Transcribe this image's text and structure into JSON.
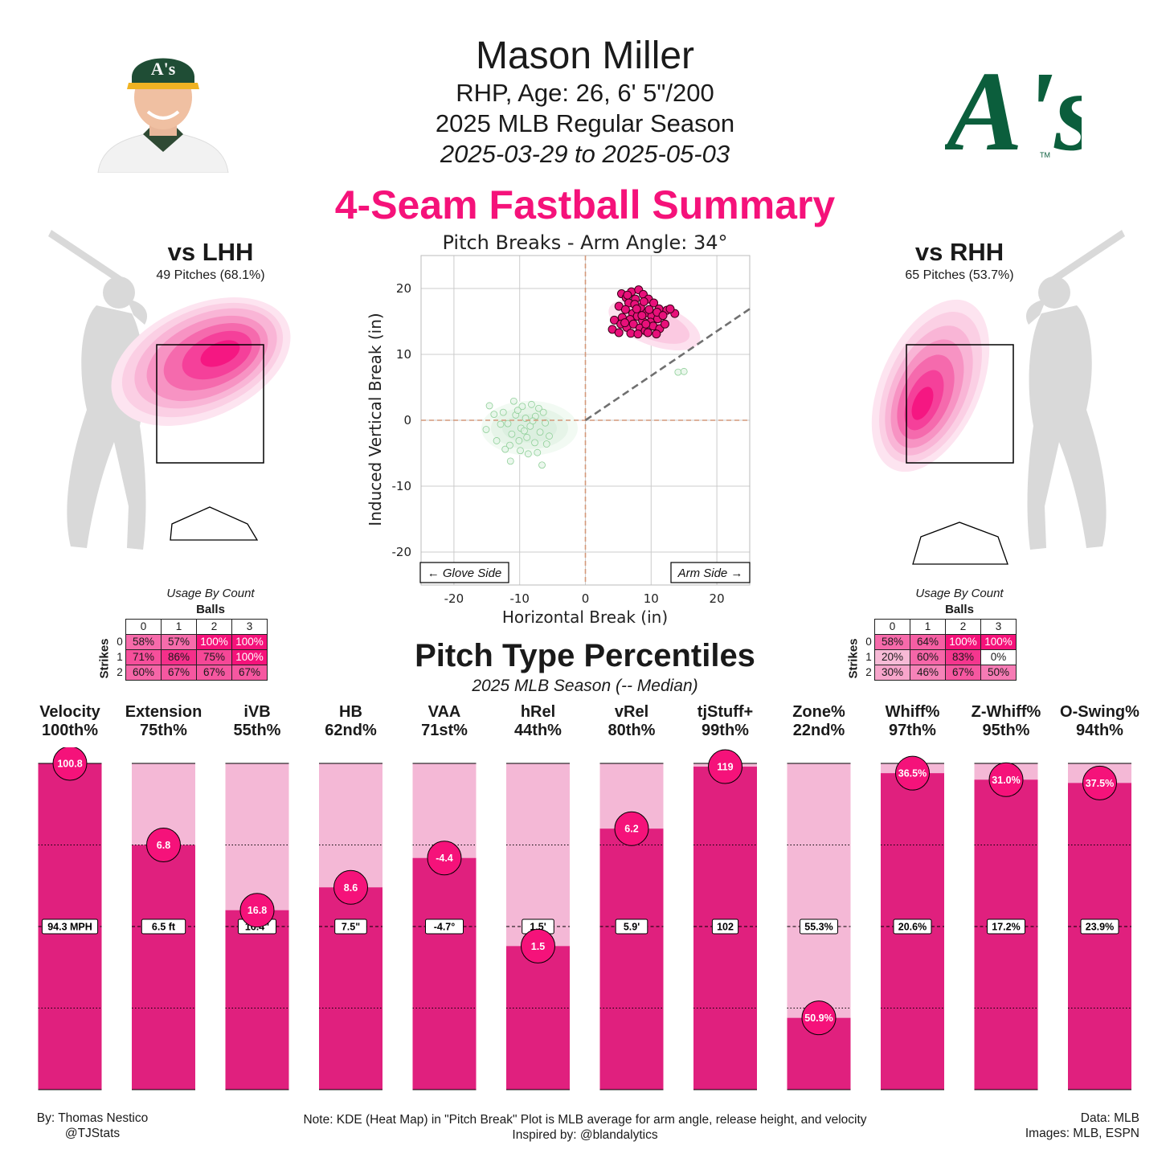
{
  "header": {
    "name": "Mason Miller",
    "info": "RHP, Age: 26, 6' 5\"/200",
    "season": "2025 MLB Regular Season",
    "dates": "2025-03-29 to 2025-05-03",
    "pitch_title": "4-Seam Fastball Summary"
  },
  "logo": {
    "text": "A's",
    "tm": "TM",
    "color": "#0b5e3c"
  },
  "lhh": {
    "title": "vs LHH",
    "sub": "49 Pitches (68.1%)",
    "usage_caption": "Usage By Count",
    "balls_label": "Balls",
    "strikes_label": "Strikes",
    "cols": [
      "0",
      "1",
      "2",
      "3"
    ],
    "rows": [
      {
        "strikes": "0",
        "cells": [
          "58%",
          "57%",
          "100%",
          "100%"
        ],
        "levels": [
          0.58,
          0.57,
          1.0,
          1.0
        ]
      },
      {
        "strikes": "1",
        "cells": [
          "71%",
          "86%",
          "75%",
          "100%"
        ],
        "levels": [
          0.71,
          0.86,
          0.75,
          1.0
        ]
      },
      {
        "strikes": "2",
        "cells": [
          "60%",
          "67%",
          "67%",
          "67%"
        ],
        "levels": [
          0.6,
          0.67,
          0.67,
          0.67
        ]
      }
    ]
  },
  "rhh": {
    "title": "vs RHH",
    "sub": "65 Pitches (53.7%)",
    "usage_caption": "Usage By Count",
    "balls_label": "Balls",
    "strikes_label": "Strikes",
    "cols": [
      "0",
      "1",
      "2",
      "3"
    ],
    "rows": [
      {
        "strikes": "0",
        "cells": [
          "58%",
          "64%",
          "100%",
          "100%"
        ],
        "levels": [
          0.58,
          0.64,
          1.0,
          1.0
        ]
      },
      {
        "strikes": "1",
        "cells": [
          "20%",
          "60%",
          "83%",
          "0%"
        ],
        "levels": [
          0.2,
          0.6,
          0.83,
          0.0
        ]
      },
      {
        "strikes": "2",
        "cells": [
          "30%",
          "46%",
          "67%",
          "50%"
        ],
        "levels": [
          0.3,
          0.46,
          0.67,
          0.5
        ]
      }
    ]
  },
  "colors": {
    "accent": "#f5127a",
    "bar_fill": "#e0207e",
    "bar_bg": "#f4b8d6",
    "kde": "#f7aed2",
    "dot": "#e8107a",
    "cmp": "#8fcf98"
  },
  "chart_data": [
    {
      "type": "scatter",
      "title": "Pitch Breaks - Arm Angle: 34°",
      "xlabel": "Horizontal Break (in)",
      "ylabel": "Induced Vertical Break (in)",
      "xlim": [
        -25,
        25
      ],
      "ylim": [
        -25,
        25
      ],
      "xticks": [
        -20,
        -10,
        0,
        10,
        20
      ],
      "yticks": [
        -20,
        -10,
        0,
        10,
        20
      ],
      "grid": true,
      "annotations": [
        "← Glove Side",
        "Arm Side →"
      ],
      "arm_angle_line": {
        "from": [
          0,
          0
        ],
        "to": [
          25,
          16.9
        ]
      },
      "series": [
        {
          "name": "4-Seam Fastball",
          "points": [
            [
              5.5,
              19.2
            ],
            [
              6.2,
              18.6
            ],
            [
              7.0,
              19.5
            ],
            [
              8.1,
              19.8
            ],
            [
              8.8,
              19.1
            ],
            [
              7.6,
              18.4
            ],
            [
              6.6,
              17.8
            ],
            [
              5.1,
              17.3
            ],
            [
              9.6,
              18.4
            ],
            [
              10.4,
              17.8
            ],
            [
              11.2,
              16.9
            ],
            [
              6.1,
              16.8
            ],
            [
              7.2,
              16.2
            ],
            [
              8.4,
              17.1
            ],
            [
              9.3,
              16.3
            ],
            [
              10.1,
              15.8
            ],
            [
              5.6,
              15.6
            ],
            [
              6.8,
              15.3
            ],
            [
              7.9,
              15.8
            ],
            [
              8.7,
              15.1
            ],
            [
              9.9,
              14.9
            ],
            [
              11.0,
              15.4
            ],
            [
              12.4,
              16.7
            ],
            [
              13.6,
              16.2
            ],
            [
              4.4,
              15.2
            ],
            [
              5.4,
              14.6
            ],
            [
              6.3,
              14.1
            ],
            [
              7.3,
              14.6
            ],
            [
              8.3,
              14.0
            ],
            [
              9.1,
              13.6
            ],
            [
              10.3,
              14.3
            ],
            [
              11.3,
              13.9
            ],
            [
              4.1,
              13.8
            ],
            [
              5.1,
              13.3
            ],
            [
              6.9,
              13.2
            ],
            [
              8.0,
              13.1
            ],
            [
              9.5,
              13.3
            ],
            [
              10.8,
              13.1
            ],
            [
              12.1,
              14.6
            ],
            [
              7.5,
              17.6
            ],
            [
              8.9,
              18.0
            ],
            [
              6.4,
              19.0
            ],
            [
              9.7,
              16.8
            ],
            [
              10.9,
              16.4
            ],
            [
              7.8,
              16.9
            ],
            [
              6.0,
              14.8
            ],
            [
              8.6,
              15.9
            ],
            [
              9.2,
              14.6
            ],
            [
              11.8,
              15.9
            ],
            [
              12.9,
              16.9
            ]
          ]
        },
        {
          "name": "League average",
          "points": [
            [
              -12.5,
              1.2
            ],
            [
              -11.8,
              -0.5
            ],
            [
              -10.6,
              0.8
            ],
            [
              -9.8,
              -1.2
            ],
            [
              -9.1,
              0.3
            ],
            [
              -8.4,
              -0.9
            ],
            [
              -7.6,
              0.6
            ],
            [
              -6.9,
              -1.8
            ],
            [
              -6.1,
              -0.4
            ],
            [
              -5.5,
              -2.4
            ],
            [
              -11.2,
              -2.1
            ],
            [
              -10.1,
              -3.1
            ],
            [
              -8.9,
              -2.6
            ],
            [
              -7.7,
              -3.4
            ],
            [
              -12.9,
              -0.6
            ],
            [
              -13.9,
              0.9
            ],
            [
              -9.6,
              2.1
            ],
            [
              -8.2,
              2.4
            ],
            [
              -10.9,
              2.9
            ],
            [
              -7.1,
              1.8
            ],
            [
              -12.2,
              -4.4
            ],
            [
              -11.4,
              -6.2
            ],
            [
              -6.6,
              -6.8
            ],
            [
              -13.5,
              -3.1
            ],
            [
              -15.1,
              -1.4
            ],
            [
              -5.9,
              -3.6
            ],
            [
              -8.7,
              -5.1
            ],
            [
              -9.9,
              -4.6
            ],
            [
              -11.5,
              -3.8
            ],
            [
              -7.3,
              -4.9
            ],
            [
              -14.6,
              2.2
            ],
            [
              -9.3,
              -1.6
            ],
            [
              -10.3,
              1.5
            ],
            [
              -8.0,
              -0.1
            ],
            [
              -6.4,
              1.2
            ],
            [
              14.1,
              7.3
            ],
            [
              15.0,
              7.4
            ]
          ]
        }
      ]
    },
    {
      "type": "bar",
      "title": "Pitch Type Percentiles",
      "subtitle": "2025 MLB Season (-- Median)",
      "ylim": [
        0,
        100
      ],
      "categories": [
        "Velocity",
        "Extension",
        "iVB",
        "HB",
        "VAA",
        "hRel",
        "vRel",
        "tjStuff+",
        "Zone%",
        "Whiff%",
        "Z-Whiff%",
        "O-Swing%"
      ],
      "percentile_labels": [
        "100th%",
        "75th%",
        "55th%",
        "62nd%",
        "71st%",
        "44th%",
        "80th%",
        "99th%",
        "22nd%",
        "97th%",
        "95th%",
        "94th%"
      ],
      "values": [
        100,
        75,
        55,
        62,
        71,
        44,
        80,
        99,
        22,
        97,
        95,
        94
      ],
      "player_values": [
        "100.8",
        "6.8",
        "16.8",
        "8.6",
        "-4.4",
        "1.5",
        "6.2",
        "119",
        "50.9%",
        "36.5%",
        "31.0%",
        "37.5%"
      ],
      "median_values": [
        "94.3 MPH",
        "6.5 ft",
        "16.4\"",
        "7.5\"",
        "-4.7°",
        "1.5'",
        "5.9'",
        "102",
        "55.3%",
        "20.6%",
        "17.2%",
        "23.9%"
      ]
    }
  ],
  "footer": {
    "by": "By: Thomas Nestico",
    "handle": "@TJStats",
    "note": "Note: KDE (Heat Map) in \"Pitch Break\" Plot is MLB average for arm angle, release height, and velocity",
    "inspired": "Inspired by: @blandalytics",
    "data": "Data: MLB",
    "images": "Images: MLB, ESPN"
  }
}
